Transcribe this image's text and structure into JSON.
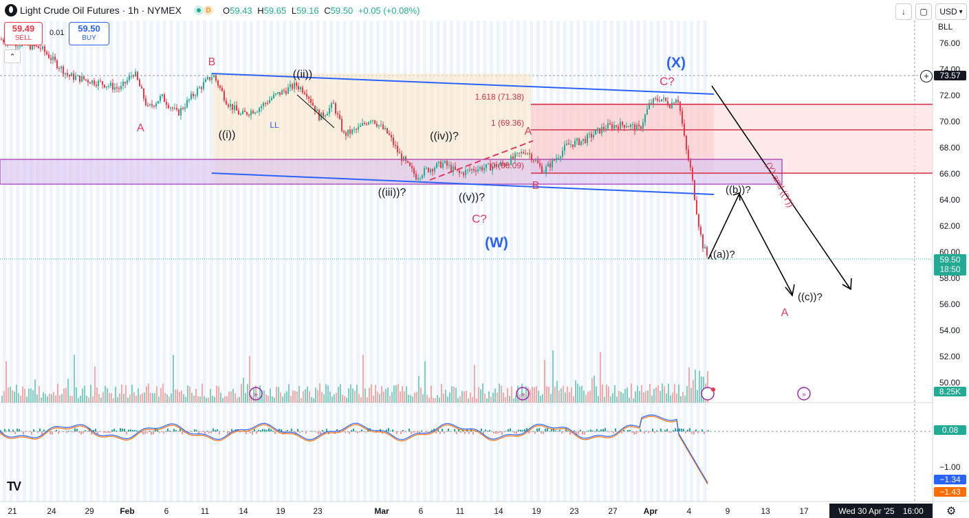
{
  "header": {
    "symbol": "Light Crude Oil Futures · 1h · NYMEX",
    "status_letter": "D",
    "open_key": "O",
    "open": "59.43",
    "high_key": "H",
    "high": "59.65",
    "low_key": "L",
    "low": "59.16",
    "close_key": "C",
    "close": "59.50",
    "change": "+0.05 (+0.08%)"
  },
  "trade": {
    "sell_price": "59.49",
    "sell_label": "SELL",
    "spread": "0.01",
    "buy_price": "59.50",
    "buy_label": "BUY"
  },
  "toolbar": {
    "currency": "USD",
    "unit": "BLL",
    "currency_chevron": "▾",
    "download_icon": "↓",
    "layout_icon": "▢",
    "fullscreen_icon": "⛶"
  },
  "price_axis": [
    "76.00",
    "74.00",
    "72.00",
    "70.00",
    "68.00",
    "66.00",
    "64.00",
    "62.00",
    "60.00",
    "58.00",
    "56.00",
    "54.00",
    "52.00",
    "50.00"
  ],
  "price_tags": {
    "crosshair": "73.57",
    "last": "59.50",
    "countdown": "18:50",
    "volume": "8.25K",
    "macd": "0.08",
    "macd_low": "−1.00",
    "macd1": "−1.34",
    "macd2": "−1.43"
  },
  "time_axis": [
    "21",
    "24",
    "29",
    "Feb",
    "6",
    "11",
    "14",
    "19",
    "23",
    "Mar",
    "6",
    "11",
    "14",
    "19",
    "23",
    "27",
    "Apr",
    "4",
    "9",
    "13",
    "17"
  ],
  "footer": {
    "date": "Wed 30 Apr '25",
    "time": "16:00"
  },
  "annotations": {
    "a1": "A",
    "b1": "B",
    "i": "((i))",
    "ll": "LL",
    "ii": "((ii))",
    "iii": "((iii))?",
    "iv": "((iv))?",
    "v": "((v))?",
    "c1": "C?",
    "w": "(W)",
    "a2": "A",
    "b2": "B",
    "c2": "C?",
    "x": "(X)",
    "a_sub": "((a))?",
    "b_sub": "((b))?",
    "c_sub": "((c))?",
    "a3": "A",
    "y": "(Y) and ((Y))",
    "fib1": "1.618 (71.38)",
    "fib2": "1 (69.36)",
    "fib3": "0 (66.09)"
  },
  "colors": {
    "up": "#22ab94",
    "down": "#f23645",
    "blue": "#2962ff",
    "red": "#e03a5c",
    "purple": "#9c27b0"
  },
  "chart_data": {
    "type": "candlestick",
    "title": "Light Crude Oil Futures · 1h · NYMEX",
    "ylim": [
      49,
      77
    ],
    "path": [
      [
        0,
        76.3
      ],
      [
        60,
        75.6
      ],
      [
        100,
        73.5
      ],
      [
        150,
        72.9
      ],
      [
        175,
        72.5
      ],
      [
        195,
        73.8
      ],
      [
        215,
        71.0
      ],
      [
        235,
        71.9
      ],
      [
        258,
        70.6
      ],
      [
        285,
        72.3
      ],
      [
        310,
        73.6
      ],
      [
        330,
        71.5
      ],
      [
        350,
        70.5
      ],
      [
        375,
        71.0
      ],
      [
        400,
        72.0
      ],
      [
        430,
        72.8
      ],
      [
        445,
        72.3
      ],
      [
        465,
        70.3
      ],
      [
        485,
        71.3
      ],
      [
        500,
        69.0
      ],
      [
        520,
        69.4
      ],
      [
        540,
        70.3
      ],
      [
        565,
        69.0
      ],
      [
        580,
        67.5
      ],
      [
        605,
        65.8
      ],
      [
        620,
        66.3
      ],
      [
        645,
        66.8
      ],
      [
        668,
        66.0
      ],
      [
        690,
        66.4
      ],
      [
        710,
        66.5
      ],
      [
        735,
        66.8
      ],
      [
        765,
        67.8
      ],
      [
        775,
        67.2
      ],
      [
        790,
        66.2
      ],
      [
        805,
        67.0
      ],
      [
        825,
        68.2
      ],
      [
        850,
        68.6
      ],
      [
        880,
        69.6
      ],
      [
        910,
        69.8
      ],
      [
        930,
        69.4
      ],
      [
        945,
        71.4
      ],
      [
        960,
        71.8
      ],
      [
        975,
        71.3
      ],
      [
        985,
        72.0
      ],
      [
        990,
        70.5
      ],
      [
        997,
        68.0
      ],
      [
        1005,
        66.1
      ],
      [
        1012,
        63.5
      ],
      [
        1018,
        61.5
      ],
      [
        1022,
        60.5
      ],
      [
        1030,
        59.5
      ]
    ]
  }
}
